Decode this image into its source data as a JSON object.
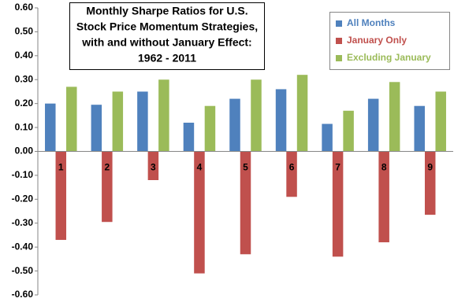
{
  "chart_data": {
    "type": "bar",
    "title": [
      "Monthly Sharpe Ratios for U.S.",
      "Stock Price Momentum Strategies,",
      "with and without January Effect:",
      "1962 - 2011"
    ],
    "categories": [
      "1",
      "2",
      "3",
      "4",
      "5",
      "6",
      "7",
      "8",
      "9"
    ],
    "series": [
      {
        "name": "All Months",
        "color": "#4f81bd",
        "values": [
          0.2,
          0.195,
          0.25,
          0.12,
          0.22,
          0.26,
          0.115,
          0.22,
          0.19
        ]
      },
      {
        "name": "January Only",
        "color": "#c0504d",
        "values": [
          -0.37,
          -0.295,
          -0.12,
          -0.51,
          -0.43,
          -0.19,
          -0.44,
          -0.38,
          -0.265
        ]
      },
      {
        "name": "Excluding January",
        "color": "#9bbb59",
        "values": [
          0.27,
          0.25,
          0.3,
          0.19,
          0.3,
          0.32,
          0.17,
          0.29,
          0.25
        ]
      }
    ],
    "ylim": [
      -0.6,
      0.6
    ],
    "yticks": [
      {
        "value": -0.6,
        "label": "-0.60"
      },
      {
        "value": -0.5,
        "label": "-0.50"
      },
      {
        "value": -0.4,
        "label": "-0.40"
      },
      {
        "value": -0.3,
        "label": "-0.30"
      },
      {
        "value": -0.2,
        "label": "-0.20"
      },
      {
        "value": -0.1,
        "label": "-0.10"
      },
      {
        "value": 0,
        "label": "0.00"
      },
      {
        "value": 0.1,
        "label": "0.10"
      },
      {
        "value": 0.2,
        "label": "0.20"
      },
      {
        "value": 0.3,
        "label": "0.30"
      },
      {
        "value": 0.4,
        "label": "0.40"
      },
      {
        "value": 0.5,
        "label": "0.50"
      },
      {
        "value": 0.6,
        "label": "0.60"
      }
    ],
    "grid": false,
    "legend": "upper-right"
  }
}
